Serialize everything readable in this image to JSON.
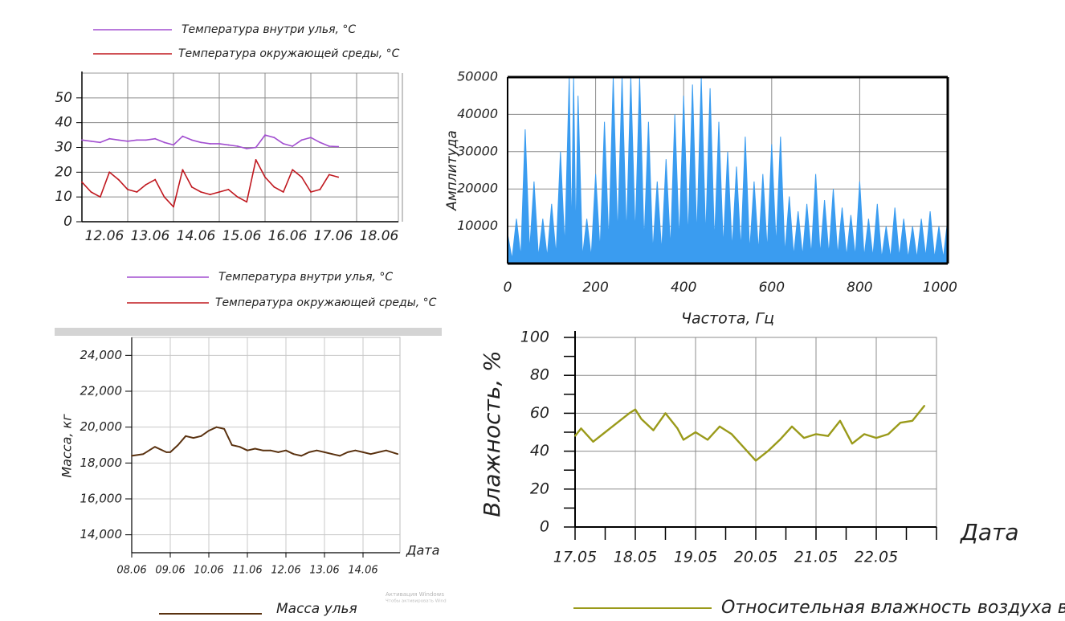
{
  "chart_data": [
    {
      "type": "line",
      "xlabel": "",
      "ylabel": "",
      "categories": [
        "12.06",
        "13.06",
        "14.06",
        "15.06",
        "16.06",
        "17.06",
        "18.06"
      ],
      "yticks": [
        "0",
        "10",
        "20",
        "30",
        "40",
        "50"
      ],
      "ylim": [
        0,
        60
      ],
      "grid": true,
      "legend_position": "top",
      "series": [
        {
          "name": "Температура внутри улья, °С",
          "color": "#a24fd0",
          "x": [
            0,
            0.2,
            0.4,
            0.6,
            0.8,
            1.0,
            1.2,
            1.4,
            1.6,
            1.8,
            2.0,
            2.2,
            2.4,
            2.6,
            2.8,
            3.0,
            3.2,
            3.4,
            3.6,
            3.8,
            4.0,
            4.2,
            4.4,
            4.6,
            4.8,
            5.0,
            5.2,
            5.4,
            5.6,
            5.8,
            6.0,
            6.2,
            6.4
          ],
          "values": [
            33,
            32.5,
            32,
            33.5,
            33,
            32.5,
            33,
            33,
            33.5,
            32,
            31,
            34.5,
            33,
            32,
            31.5,
            31.5,
            31,
            30.5,
            29.5,
            30,
            35,
            34,
            31.5,
            30.5,
            33,
            34,
            32,
            30.5,
            30.3,
            null,
            null,
            null,
            null
          ]
        },
        {
          "name": "Температура окружающей среды, °С",
          "color": "#c0181f",
          "x": [
            0,
            0.2,
            0.4,
            0.6,
            0.8,
            1.0,
            1.2,
            1.4,
            1.6,
            1.8,
            2.0,
            2.2,
            2.4,
            2.6,
            2.8,
            3.0,
            3.2,
            3.4,
            3.6,
            3.8,
            4.0,
            4.2,
            4.4,
            4.6,
            4.8,
            5.0,
            5.2,
            5.4,
            5.6,
            5.8,
            6.0,
            6.2,
            6.4,
            6.6
          ],
          "values": [
            16,
            12,
            10,
            20,
            17,
            13,
            12,
            15,
            17,
            10,
            6,
            21,
            14,
            12,
            11,
            12,
            13,
            10,
            8,
            25,
            18,
            14,
            12,
            21,
            18,
            12,
            13,
            19,
            18,
            null,
            null,
            null,
            null,
            null
          ]
        }
      ],
      "caption_legend": [
        "Температура внутри улья, °С",
        "Температура окружающей среды, °С"
      ]
    },
    {
      "type": "area",
      "xlabel": "Частота, Гц",
      "ylabel": "Амплитуда",
      "xticks": [
        "0",
        "200",
        "400",
        "600",
        "800",
        "1000"
      ],
      "yticks": [
        "10000",
        "20000",
        "30000",
        "40000",
        "50000"
      ],
      "xlim": [
        0,
        1000
      ],
      "ylim": [
        0,
        50000
      ],
      "grid": true,
      "series": [
        {
          "name": "",
          "color": "#3a9cf0",
          "x": [
            0,
            20,
            40,
            60,
            80,
            100,
            120,
            140,
            150,
            160,
            180,
            200,
            220,
            240,
            260,
            280,
            300,
            320,
            340,
            360,
            380,
            400,
            420,
            440,
            460,
            480,
            500,
            520,
            540,
            560,
            580,
            600,
            620,
            640,
            660,
            680,
            700,
            720,
            740,
            760,
            780,
            800,
            820,
            840,
            860,
            880,
            900,
            920,
            940,
            960,
            980,
            1000
          ],
          "values": [
            8000,
            12000,
            36000,
            22000,
            12000,
            16000,
            30000,
            50000,
            50000,
            45000,
            12000,
            24000,
            38000,
            50000,
            50000,
            50000,
            50000,
            38000,
            22000,
            28000,
            40000,
            45000,
            48000,
            50000,
            47000,
            38000,
            30000,
            26000,
            34000,
            22000,
            24000,
            32000,
            34000,
            18000,
            14000,
            16000,
            24000,
            17000,
            20000,
            15000,
            13000,
            22000,
            12000,
            16000,
            10000,
            15000,
            12000,
            10000,
            12000,
            14000,
            10000,
            12000
          ]
        }
      ]
    },
    {
      "type": "line",
      "xlabel": "Дата",
      "ylabel": "Масса, кг",
      "categories": [
        "08.06",
        "09.06",
        "10.06",
        "11.06",
        "12.06",
        "13.06",
        "14.06"
      ],
      "yticks": [
        "14,000",
        "16,000",
        "18,000",
        "20,000",
        "22,000",
        "24,000"
      ],
      "ylim": [
        13000,
        25000
      ],
      "grid": true,
      "series": [
        {
          "name": "Масса улья",
          "color": "#5a3210",
          "x": [
            0,
            0.3,
            0.6,
            0.9,
            1.0,
            1.2,
            1.4,
            1.6,
            1.8,
            2.0,
            2.2,
            2.4,
            2.6,
            2.8,
            3.0,
            3.2,
            3.4,
            3.6,
            3.8,
            4.0,
            4.2,
            4.4,
            4.6,
            4.8,
            5.0,
            5.2,
            5.4,
            5.6,
            5.8,
            6.0,
            6.2,
            6.4,
            6.6,
            6.9
          ],
          "values": [
            18400,
            18500,
            18900,
            18600,
            18600,
            19000,
            19500,
            19400,
            19500,
            19800,
            20000,
            19900,
            19000,
            18900,
            18700,
            18800,
            18700,
            18700,
            18600,
            18700,
            18500,
            18400,
            18600,
            18700,
            18600,
            18500,
            18400,
            18600,
            18700,
            18600,
            18500,
            18600,
            18700,
            18500
          ]
        }
      ],
      "watermark": [
        "Активация Windows",
        "Чтобы активировать Wind"
      ]
    },
    {
      "type": "line",
      "xlabel": "Дата",
      "ylabel": "Влажность, %",
      "categories": [
        "17.05",
        "18.05",
        "19.05",
        "20.05",
        "21.05",
        "22.05"
      ],
      "yticks": [
        "0",
        "20",
        "40",
        "60",
        "80",
        "100"
      ],
      "ylim": [
        0,
        100
      ],
      "grid": true,
      "series": [
        {
          "name": "Относительная влажность воздуха в улье",
          "color": "#9a9a1a",
          "x": [
            0,
            0.1,
            0.3,
            0.5,
            0.7,
            0.9,
            1.0,
            1.1,
            1.3,
            1.5,
            1.7,
            1.8,
            2.0,
            2.2,
            2.4,
            2.6,
            2.8,
            3.0,
            3.2,
            3.4,
            3.6,
            3.8,
            4.0,
            4.2,
            4.4,
            4.6,
            4.8,
            5.0,
            5.2,
            5.4,
            5.6,
            5.8
          ],
          "values": [
            48,
            52,
            45,
            50,
            55,
            60,
            62,
            57,
            51,
            60,
            52,
            46,
            50,
            46,
            53,
            49,
            42,
            35,
            40,
            46,
            53,
            47,
            49,
            48,
            56,
            44,
            49,
            47,
            49,
            55,
            56,
            64
          ]
        }
      ]
    }
  ]
}
